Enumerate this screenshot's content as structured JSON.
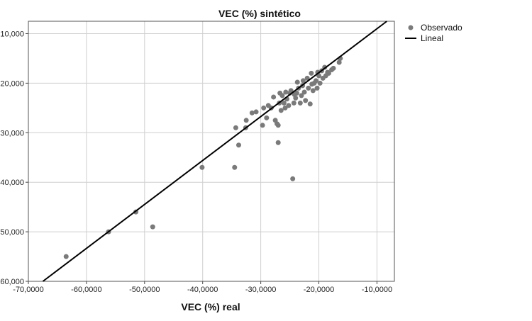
{
  "chart_data": {
    "type": "scatter",
    "title": "VEC (%) sintético",
    "xlabel": "VEC (%) real",
    "ylabel": "",
    "xlim": [
      -70000,
      -7000
    ],
    "ylim": [
      -60000,
      -7500
    ],
    "xticks": [
      -70000,
      -60000,
      -50000,
      -40000,
      -30000,
      -20000,
      -10000
    ],
    "xtick_labels": [
      "-70,0000",
      "-60,0000",
      "-50,0000",
      "-40,0000",
      "-30,0000",
      "-20,0000",
      "-10,0000"
    ],
    "yticks": [
      -10000,
      -20000,
      -30000,
      -40000,
      -50000,
      -60000
    ],
    "ytick_labels": [
      "-10,000",
      "-20,000",
      "-30,000",
      "-40,000",
      "-50,000",
      "-60,000"
    ],
    "grid": true,
    "legend_position": "top-right",
    "series": [
      {
        "name": "Observado",
        "kind": "points",
        "color": "#7a7a7a",
        "points": [
          [
            -63500,
            -55000
          ],
          [
            -56200,
            -50000
          ],
          [
            -51500,
            -46000
          ],
          [
            -48600,
            -49000
          ],
          [
            -40100,
            -37000
          ],
          [
            -34500,
            -37000
          ],
          [
            -34300,
            -29000
          ],
          [
            -33800,
            -32500
          ],
          [
            -32600,
            -29000
          ],
          [
            -32500,
            -27500
          ],
          [
            -31500,
            -26000
          ],
          [
            -30800,
            -25800
          ],
          [
            -29700,
            -28500
          ],
          [
            -29500,
            -25000
          ],
          [
            -29000,
            -27000
          ],
          [
            -28700,
            -24500
          ],
          [
            -28200,
            -25000
          ],
          [
            -27800,
            -22800
          ],
          [
            -27500,
            -27500
          ],
          [
            -27200,
            -28200
          ],
          [
            -27000,
            -32000
          ],
          [
            -27000,
            -28500
          ],
          [
            -26800,
            -24000
          ],
          [
            -26500,
            -25500
          ],
          [
            -26300,
            -22500
          ],
          [
            -26000,
            -24000
          ],
          [
            -25800,
            -25000
          ],
          [
            -25500,
            -23200
          ],
          [
            -25200,
            -24500
          ],
          [
            -25000,
            -22000
          ],
          [
            -24800,
            -21500
          ],
          [
            -24500,
            -39300
          ],
          [
            -24300,
            -24000
          ],
          [
            -24000,
            -23000
          ],
          [
            -23800,
            -22000
          ],
          [
            -23500,
            -21000
          ],
          [
            -23200,
            -24000
          ],
          [
            -23000,
            -22500
          ],
          [
            -22800,
            -20500
          ],
          [
            -22500,
            -21800
          ],
          [
            -22300,
            -23500
          ],
          [
            -22000,
            -19000
          ],
          [
            -21800,
            -21000
          ],
          [
            -21500,
            -24200
          ],
          [
            -21300,
            -18000
          ],
          [
            -21000,
            -21500
          ],
          [
            -20800,
            -20000
          ],
          [
            -20500,
            -19500
          ],
          [
            -20300,
            -21000
          ],
          [
            -20000,
            -18500
          ],
          [
            -19800,
            -20000
          ],
          [
            -19500,
            -17500
          ],
          [
            -19300,
            -19000
          ],
          [
            -19000,
            -16800
          ],
          [
            -18800,
            -18500
          ],
          [
            -18500,
            -17800
          ],
          [
            -18300,
            -18000
          ],
          [
            -17800,
            -17300
          ],
          [
            -17500,
            -17000
          ],
          [
            -16500,
            -15800
          ],
          [
            -16300,
            -15000
          ],
          [
            -20200,
            -17800
          ],
          [
            -22700,
            -19500
          ],
          [
            -24200,
            -22300
          ],
          [
            -25700,
            -21800
          ],
          [
            -26700,
            -22000
          ],
          [
            -23700,
            -19800
          ],
          [
            -21200,
            -20200
          ]
        ]
      },
      {
        "name": "Lineal",
        "kind": "line",
        "color": "#000000",
        "points": [
          [
            -67500,
            -60000
          ],
          [
            -8300,
            -7500
          ]
        ]
      }
    ]
  }
}
